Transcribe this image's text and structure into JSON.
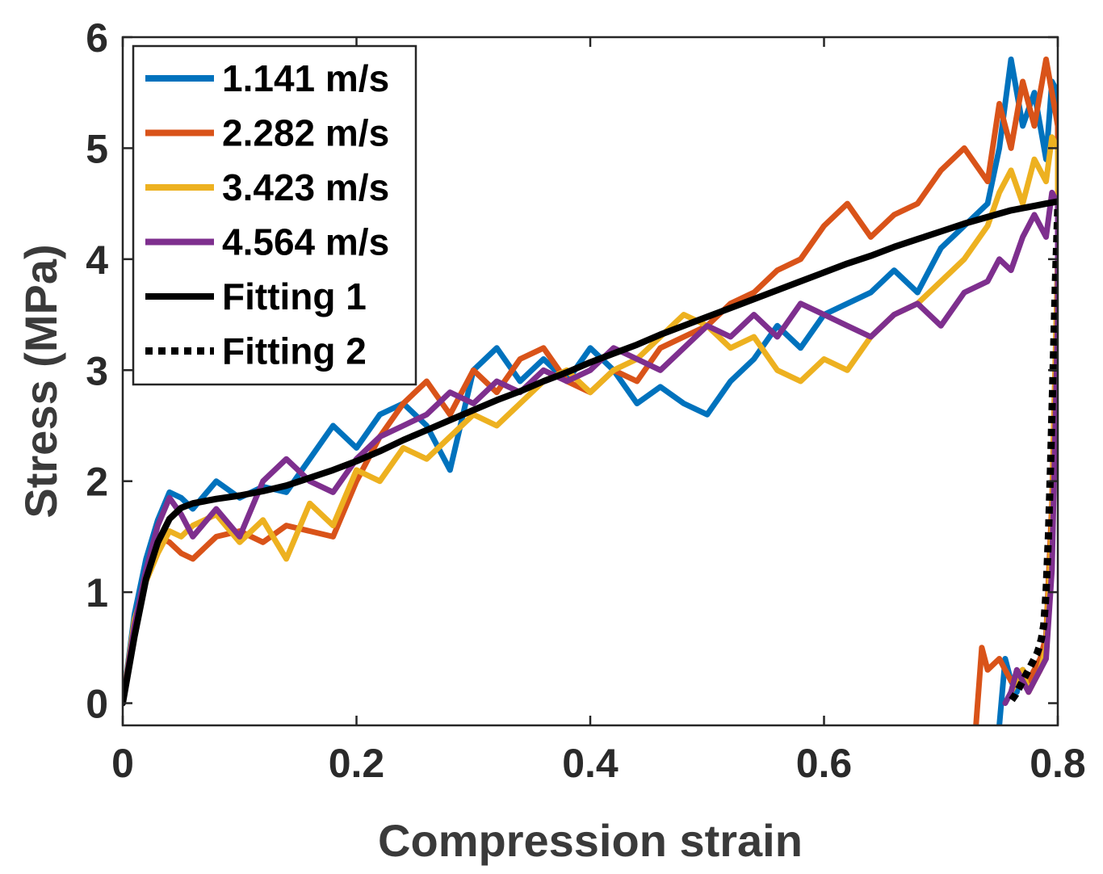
{
  "chart_data": {
    "type": "line",
    "title": "",
    "xlabel": "Compression strain",
    "ylabel": "Stress (MPa)",
    "xlim": [
      0,
      0.8
    ],
    "ylim": [
      -0.2,
      6
    ],
    "xticks": [
      0,
      0.2,
      0.4,
      0.6,
      0.8
    ],
    "xtick_labels": [
      "0",
      "0.2",
      "0.4",
      "0.6",
      "0.8"
    ],
    "yticks": [
      0,
      1,
      2,
      3,
      4,
      5,
      6
    ],
    "ytick_labels": [
      "0",
      "1",
      "2",
      "3",
      "4",
      "5",
      "6"
    ],
    "grid": false,
    "legend_position": "top-left",
    "series": [
      {
        "name": "1.141 m/s",
        "color": "#0072BD",
        "style": "solid",
        "x": [
          0,
          0.01,
          0.02,
          0.03,
          0.04,
          0.05,
          0.06,
          0.08,
          0.1,
          0.12,
          0.14,
          0.16,
          0.18,
          0.2,
          0.22,
          0.24,
          0.26,
          0.28,
          0.3,
          0.32,
          0.34,
          0.36,
          0.38,
          0.4,
          0.42,
          0.44,
          0.46,
          0.48,
          0.5,
          0.52,
          0.54,
          0.56,
          0.58,
          0.6,
          0.62,
          0.64,
          0.66,
          0.68,
          0.7,
          0.72,
          0.74,
          0.75,
          0.76,
          0.77,
          0.78,
          0.79,
          0.795,
          0.8,
          0.8,
          0.795,
          0.79,
          0.785,
          0.78,
          0.775,
          0.77,
          0.765,
          0.76,
          0.755,
          0.75
        ],
        "y": [
          0,
          0.8,
          1.3,
          1.65,
          1.9,
          1.85,
          1.75,
          2.0,
          1.85,
          1.95,
          1.9,
          2.2,
          2.5,
          2.3,
          2.6,
          2.7,
          2.5,
          2.1,
          3.0,
          3.2,
          2.9,
          3.1,
          2.9,
          3.2,
          3.0,
          2.7,
          2.85,
          2.7,
          2.6,
          2.9,
          3.1,
          3.4,
          3.2,
          3.5,
          3.6,
          3.7,
          3.9,
          3.7,
          4.1,
          4.3,
          4.5,
          5.0,
          5.8,
          5.2,
          5.5,
          4.9,
          5.6,
          5.5,
          4.0,
          1.5,
          0.6,
          0.4,
          0.3,
          0.2,
          0.3,
          0.1,
          0.2,
          0.4,
          -0.2
        ]
      },
      {
        "name": "2.282 m/s",
        "color": "#D95319",
        "style": "solid",
        "x": [
          0,
          0.01,
          0.02,
          0.03,
          0.04,
          0.05,
          0.06,
          0.08,
          0.1,
          0.12,
          0.14,
          0.16,
          0.18,
          0.2,
          0.22,
          0.24,
          0.26,
          0.28,
          0.3,
          0.32,
          0.34,
          0.36,
          0.38,
          0.4,
          0.42,
          0.44,
          0.46,
          0.48,
          0.5,
          0.52,
          0.54,
          0.56,
          0.58,
          0.6,
          0.62,
          0.64,
          0.66,
          0.68,
          0.7,
          0.72,
          0.74,
          0.75,
          0.76,
          0.77,
          0.78,
          0.79,
          0.795,
          0.8,
          0.8,
          0.795,
          0.79,
          0.785,
          0.78,
          0.775,
          0.77,
          0.76,
          0.75,
          0.74,
          0.735,
          0.73
        ],
        "y": [
          0,
          0.7,
          1.2,
          1.5,
          1.45,
          1.35,
          1.3,
          1.5,
          1.55,
          1.45,
          1.6,
          1.55,
          1.5,
          2.0,
          2.4,
          2.7,
          2.9,
          2.6,
          3.0,
          2.8,
          3.1,
          3.2,
          2.9,
          2.8,
          3.0,
          2.9,
          3.2,
          3.3,
          3.4,
          3.6,
          3.7,
          3.9,
          4.0,
          4.3,
          4.5,
          4.2,
          4.4,
          4.5,
          4.8,
          5.0,
          4.7,
          5.4,
          5.0,
          5.6,
          5.2,
          5.8,
          5.5,
          5.2,
          4.0,
          1.8,
          0.6,
          0.4,
          0.3,
          0.2,
          0.3,
          0.2,
          0.4,
          0.3,
          0.5,
          -0.2
        ]
      },
      {
        "name": "3.423 m/s",
        "color": "#EDB120",
        "style": "solid",
        "x": [
          0,
          0.01,
          0.02,
          0.03,
          0.04,
          0.05,
          0.06,
          0.08,
          0.1,
          0.12,
          0.14,
          0.16,
          0.18,
          0.2,
          0.22,
          0.24,
          0.26,
          0.28,
          0.3,
          0.32,
          0.34,
          0.36,
          0.38,
          0.4,
          0.42,
          0.44,
          0.46,
          0.48,
          0.5,
          0.52,
          0.54,
          0.56,
          0.58,
          0.6,
          0.62,
          0.64,
          0.66,
          0.68,
          0.7,
          0.72,
          0.74,
          0.75,
          0.76,
          0.77,
          0.78,
          0.79,
          0.795,
          0.8,
          0.8,
          0.795,
          0.79,
          0.785,
          0.78,
          0.775,
          0.77,
          0.765,
          0.76
        ],
        "y": [
          0,
          0.75,
          1.1,
          1.35,
          1.55,
          1.5,
          1.6,
          1.7,
          1.45,
          1.65,
          1.3,
          1.8,
          1.6,
          2.1,
          2.0,
          2.3,
          2.2,
          2.4,
          2.6,
          2.5,
          2.7,
          2.9,
          3.0,
          2.8,
          3.0,
          3.1,
          3.3,
          3.5,
          3.4,
          3.2,
          3.3,
          3.0,
          2.9,
          3.1,
          3.0,
          3.3,
          3.5,
          3.6,
          3.8,
          4.0,
          4.3,
          4.6,
          4.8,
          4.5,
          4.9,
          4.7,
          5.1,
          5.0,
          4.0,
          1.6,
          0.5,
          0.3,
          0.2,
          0.1,
          0.3,
          0.2,
          0.1
        ]
      },
      {
        "name": "4.564 m/s",
        "color": "#7E2F8E",
        "style": "solid",
        "x": [
          0,
          0.01,
          0.02,
          0.03,
          0.04,
          0.05,
          0.06,
          0.08,
          0.1,
          0.12,
          0.14,
          0.16,
          0.18,
          0.2,
          0.22,
          0.24,
          0.26,
          0.28,
          0.3,
          0.32,
          0.34,
          0.36,
          0.38,
          0.4,
          0.42,
          0.44,
          0.46,
          0.48,
          0.5,
          0.52,
          0.54,
          0.56,
          0.58,
          0.6,
          0.62,
          0.64,
          0.66,
          0.68,
          0.7,
          0.72,
          0.74,
          0.75,
          0.76,
          0.77,
          0.78,
          0.79,
          0.795,
          0.8,
          0.8,
          0.795,
          0.79,
          0.785,
          0.78,
          0.775,
          0.77,
          0.765,
          0.76,
          0.755
        ],
        "y": [
          0,
          0.7,
          1.2,
          1.6,
          1.85,
          1.7,
          1.5,
          1.75,
          1.5,
          2.0,
          2.2,
          2.0,
          1.9,
          2.2,
          2.4,
          2.5,
          2.6,
          2.8,
          2.7,
          2.9,
          2.8,
          3.0,
          2.9,
          3.0,
          3.2,
          3.1,
          3.0,
          3.2,
          3.4,
          3.3,
          3.5,
          3.3,
          3.6,
          3.5,
          3.4,
          3.3,
          3.5,
          3.6,
          3.4,
          3.7,
          3.8,
          4.0,
          3.9,
          4.2,
          4.4,
          4.2,
          4.6,
          4.5,
          3.5,
          1.2,
          0.4,
          0.3,
          0.2,
          0.1,
          0.2,
          0.3,
          0.1,
          0.0
        ]
      },
      {
        "name": "Fitting 1",
        "color": "#000000",
        "style": "solid",
        "x": [
          0,
          0.01,
          0.02,
          0.03,
          0.04,
          0.05,
          0.06,
          0.08,
          0.1,
          0.12,
          0.14,
          0.16,
          0.18,
          0.2,
          0.22,
          0.24,
          0.26,
          0.28,
          0.3,
          0.32,
          0.34,
          0.36,
          0.38,
          0.4,
          0.42,
          0.44,
          0.46,
          0.48,
          0.5,
          0.52,
          0.54,
          0.56,
          0.58,
          0.6,
          0.62,
          0.64,
          0.66,
          0.68,
          0.7,
          0.72,
          0.74,
          0.76,
          0.78,
          0.79,
          0.8
        ],
        "y": [
          0,
          0.6,
          1.12,
          1.45,
          1.66,
          1.76,
          1.8,
          1.84,
          1.87,
          1.91,
          1.96,
          2.03,
          2.1,
          2.18,
          2.27,
          2.37,
          2.46,
          2.55,
          2.64,
          2.73,
          2.81,
          2.9,
          2.98,
          3.07,
          3.15,
          3.23,
          3.32,
          3.4,
          3.48,
          3.56,
          3.64,
          3.72,
          3.8,
          3.88,
          3.96,
          4.03,
          4.11,
          4.18,
          4.25,
          4.32,
          4.38,
          4.44,
          4.48,
          4.5,
          4.52
        ]
      },
      {
        "name": "Fitting 2",
        "color": "#000000",
        "style": "dotted",
        "x": [
          0.8,
          0.798,
          0.796,
          0.794,
          0.792,
          0.79,
          0.788,
          0.786,
          0.784,
          0.782,
          0.78,
          0.776,
          0.772,
          0.768,
          0.764,
          0.76
        ],
        "y": [
          4.45,
          3.8,
          3.0,
          2.2,
          1.5,
          1.0,
          0.7,
          0.58,
          0.5,
          0.44,
          0.4,
          0.32,
          0.24,
          0.16,
          0.08,
          0.02
        ]
      }
    ]
  }
}
